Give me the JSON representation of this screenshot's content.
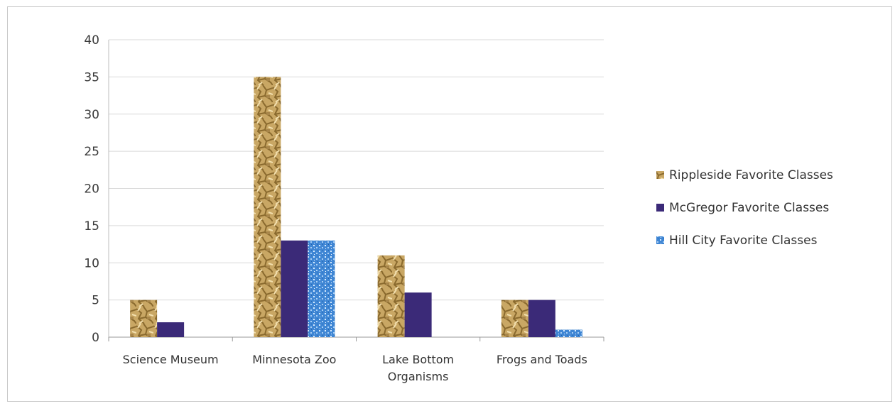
{
  "chart_data": {
    "type": "bar",
    "categories": [
      [
        "Science Museum"
      ],
      [
        "Minnesota Zoo"
      ],
      [
        "Lake Bottom",
        "Organisms"
      ],
      [
        "Frogs and Toads"
      ]
    ],
    "series": [
      {
        "name": "Rippleside Favorite Classes",
        "values": [
          5,
          35,
          11,
          5
        ],
        "color": "#c9a764",
        "pattern": "crumpled-gold"
      },
      {
        "name": "McGregor Favorite Classes",
        "values": [
          2,
          13,
          6,
          5
        ],
        "color": "#3b2a78",
        "pattern": "solid"
      },
      {
        "name": "Hill City Favorite  Classes",
        "values": [
          0,
          13,
          0,
          1
        ],
        "color": "#3f86d4",
        "pattern": "speckled-blue"
      }
    ],
    "ylim": [
      0,
      40
    ],
    "yticks": [
      0,
      5,
      10,
      15,
      20,
      25,
      30,
      35,
      40
    ],
    "grid": true,
    "legend_position": "right",
    "title": "",
    "xlabel": "",
    "ylabel": ""
  }
}
